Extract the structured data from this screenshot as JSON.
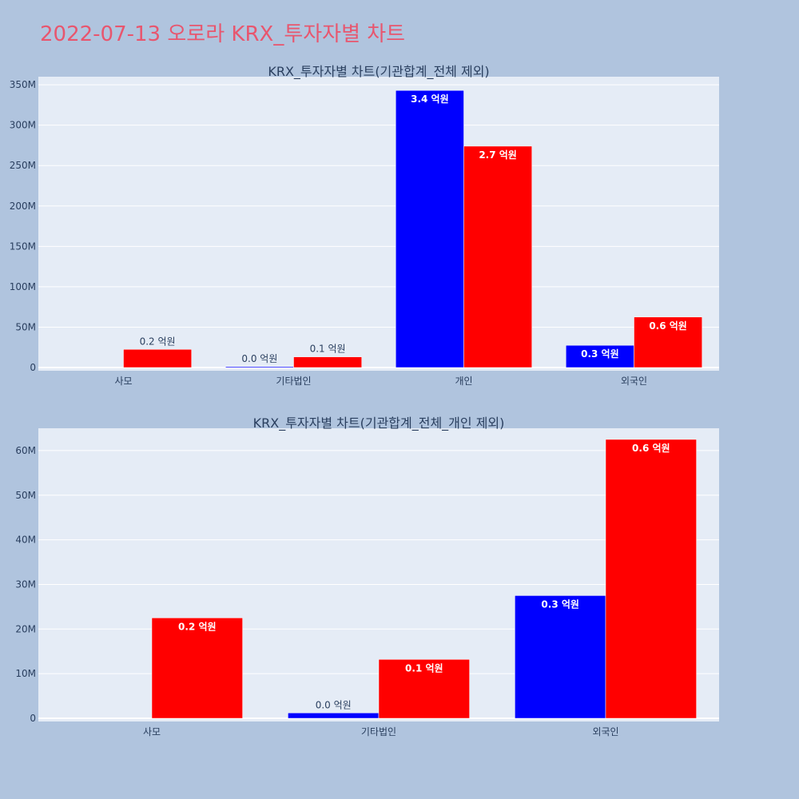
{
  "page_title": "2022-07-13 오로라 KRX_투자자별 차트",
  "colors": {
    "series_a": "#0000ff",
    "series_b": "#ff0000",
    "title": "#e8566e",
    "plot_bg": "#e5ecf6",
    "page_bg": "#b0c4de"
  },
  "chart_data": [
    {
      "type": "bar",
      "title": "KRX_투자자별 차트(기관합계_전체 제외)",
      "categories": [
        "사모",
        "기타법인",
        "개인",
        "외국인"
      ],
      "series": [
        {
          "values": [
            0,
            1200000,
            343000000,
            27500000
          ],
          "labels": [
            "",
            "0.0 억원",
            "3.4 억원",
            "0.3 억원"
          ]
        },
        {
          "values": [
            22500000,
            13200000,
            274000000,
            62500000
          ],
          "labels": [
            "0.2 억원",
            "0.1 억원",
            "2.7 억원",
            "0.6 억원"
          ]
        }
      ],
      "yticks": [
        0,
        50000000,
        100000000,
        150000000,
        200000000,
        250000000,
        300000000,
        350000000
      ],
      "ytick_labels": [
        "0",
        "50M",
        "100M",
        "150M",
        "200M",
        "250M",
        "300M",
        "350M"
      ],
      "ylim": [
        0,
        360000000
      ],
      "grid": true
    },
    {
      "type": "bar",
      "title": "KRX_투자자별 차트(기관합계_전체_개인 제외)",
      "categories": [
        "사모",
        "기타법인",
        "외국인"
      ],
      "series": [
        {
          "values": [
            0,
            1200000,
            27500000
          ],
          "labels": [
            "",
            "0.0 억원",
            "0.3 억원"
          ]
        },
        {
          "values": [
            22500000,
            13200000,
            62500000
          ],
          "labels": [
            "0.2 억원",
            "0.1 억원",
            "0.6 억원"
          ]
        }
      ],
      "yticks": [
        0,
        10000000,
        20000000,
        30000000,
        40000000,
        50000000,
        60000000
      ],
      "ytick_labels": [
        "0",
        "10M",
        "20M",
        "30M",
        "40M",
        "50M",
        "60M"
      ],
      "ylim": [
        0,
        65000000
      ],
      "grid": true
    }
  ]
}
